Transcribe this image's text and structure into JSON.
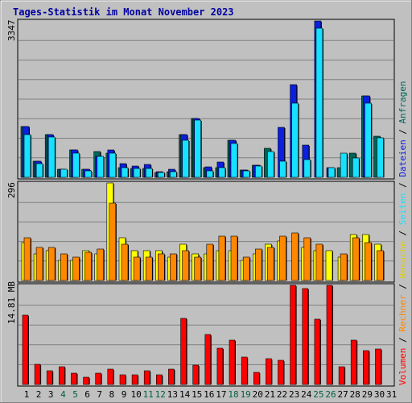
{
  "title": "Tages-Statistik im Monat November 2023",
  "colors": {
    "background": "#c0c0c0",
    "title": "#0000a0",
    "grid": "#808080",
    "weekday_label": "#000000",
    "weekend_label": "#006040",
    "hits": "#006458",
    "files": "#0a1fe0",
    "pages": "#18e0ff",
    "visits": "#ffff00",
    "sites": "#ff8800",
    "kbytes": "#ff0000"
  },
  "legend": {
    "top": [
      {
        "text": "Anfragen",
        "color": "#006458"
      },
      {
        "text": " / ",
        "color": "#000000"
      },
      {
        "text": "Dateien",
        "color": "#0a1fe0"
      },
      {
        "text": " / ",
        "color": "#000000"
      },
      {
        "text": "Seiten",
        "color": "#18e0ff"
      },
      {
        "text": " / ",
        "color": "#000000"
      },
      {
        "text": "Besuche",
        "color": "#e0d000"
      },
      {
        "text": " / ",
        "color": "#000000"
      },
      {
        "text": "Rechner",
        "color": "#ff8800"
      },
      {
        "text": " / ",
        "color": "#000000"
      },
      {
        "text": "Volumen",
        "color": "#ff0000"
      }
    ]
  },
  "chart_data": {
    "type": "bar",
    "title": "Tages-Statistik im Monat November 2023",
    "categories": [
      "1",
      "2",
      "3",
      "4",
      "5",
      "6",
      "7",
      "8",
      "9",
      "10",
      "11",
      "12",
      "13",
      "14",
      "15",
      "16",
      "17",
      "18",
      "19",
      "20",
      "21",
      "22",
      "23",
      "24",
      "25",
      "26",
      "27",
      "28",
      "29",
      "30",
      "31"
    ],
    "weekend_days": [
      "4",
      "5",
      "11",
      "12",
      "18",
      "19",
      "25",
      "26"
    ],
    "panels": [
      {
        "max_label": "3347",
        "ymax": 3347,
        "series": [
          {
            "name": "Anfragen",
            "values": [
              1090,
              350,
              910,
              175,
              580,
              175,
              560,
              510,
              200,
              190,
              190,
              110,
              125,
              920,
              1260,
              210,
              210,
              790,
              150,
              260,
              615,
              0,
              0,
              0,
              0,
              0,
              210,
              520,
              1740,
              880,
              0
            ]
          },
          {
            "name": "Dateien",
            "values": [
              1090,
              350,
              910,
              175,
              580,
              175,
              445,
              590,
              290,
              235,
              275,
              125,
              170,
              910,
              1260,
              225,
              330,
              790,
              150,
              260,
              0,
              1070,
              1990,
              690,
              3350,
              210,
              0,
              0,
              1740,
              0,
              0
            ]
          },
          {
            "name": "Seiten",
            "values": [
              920,
              290,
              860,
              175,
              520,
              135,
              445,
              510,
              200,
              190,
              190,
              110,
              125,
              790,
              1230,
              140,
              210,
              720,
              130,
              240,
              560,
              350,
              1580,
              380,
              3200,
              200,
              520,
              410,
              1580,
              840,
              0
            ]
          }
        ]
      },
      {
        "max_label": "296",
        "ymax": 296,
        "series": [
          {
            "name": "Besuche",
            "values": [
              115,
              80,
              90,
              60,
              60,
              90,
              80,
              295,
              130,
              90,
              90,
              90,
              70,
              110,
              80,
              80,
              90,
              90,
              60,
              80,
              110,
              120,
              0,
              100,
              90,
              90,
              70,
              140,
              140,
              110,
              0
            ]
          },
          {
            "name": "Rechner",
            "values": [
              130,
              100,
              100,
              80,
              70,
              85,
              95,
              234,
              110,
              70,
              70,
              80,
              80,
              90,
              70,
              110,
              135,
              135,
              70,
              95,
              100,
              135,
              145,
              130,
              110,
              0,
              80,
              130,
              115,
              90,
              0
            ]
          }
        ]
      },
      {
        "max_label": "14.81 MB",
        "ymax": 14.81,
        "series": [
          {
            "name": "Volumen",
            "values": [
              10.3,
              3.0,
              2.1,
              2.6,
              1.7,
              1.1,
              1.7,
              2.3,
              1.5,
              1.5,
              2.1,
              1.5,
              2.3,
              9.9,
              2.9,
              7.5,
              5.4,
              6.6,
              4.1,
              1.8,
              3.8,
              3.6,
              14.81,
              14.3,
              9.8,
              14.81,
              2.6,
              6.6,
              5.1,
              5.3,
              0
            ]
          }
        ]
      }
    ]
  }
}
